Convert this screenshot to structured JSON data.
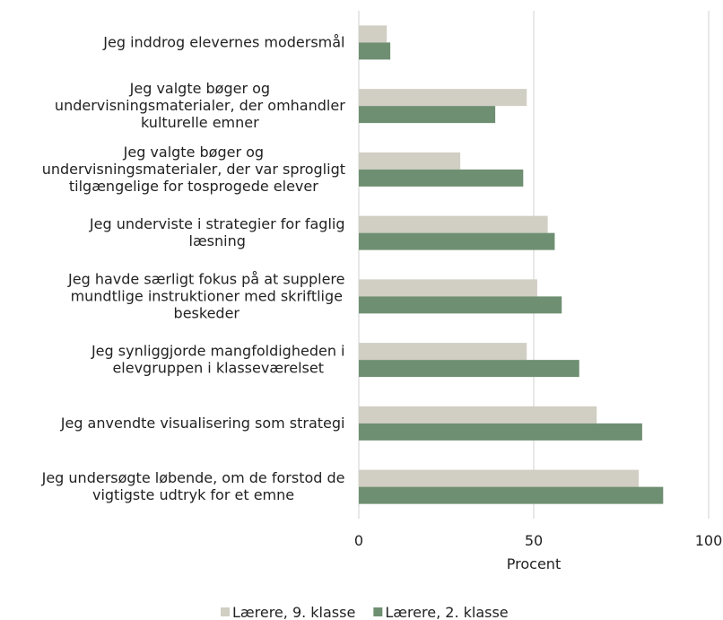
{
  "chart_data": {
    "type": "hbar",
    "categories": [
      "Jeg inddrog elevernes modersmål",
      "Jeg valgte bøger og undervisningsmaterialer, der omhandler kulturelle emner",
      "Jeg valgte bøger og undervisningsmaterialer, der var sprogligt tilgængelige for tosprogede elever",
      "Jeg underviste i strategier for faglig læsning",
      "Jeg havde særligt fokus på at supplere mundtlige instruktioner med skriftlige beskeder",
      "Jeg synliggjorde mangfoldigheden i elevgruppen i klasseværelset",
      "Jeg anvendte visualisering som strategi",
      "Jeg undersøgte løbende, om de forstod de vigtigste udtryk for et emne"
    ],
    "series": [
      {
        "name": "Lærere, 9. klasse",
        "color": "#d1cec4",
        "values": [
          8,
          48,
          29,
          54,
          51,
          48,
          68,
          80
        ]
      },
      {
        "name": "Lærere, 2. klasse",
        "color": "#6f8f72",
        "values": [
          9,
          39,
          47,
          56,
          58,
          63,
          81,
          87
        ]
      }
    ],
    "xlabel": "Procent",
    "xlim": [
      0,
      100
    ],
    "xticks": [
      0,
      50,
      100
    ],
    "grid": true
  }
}
